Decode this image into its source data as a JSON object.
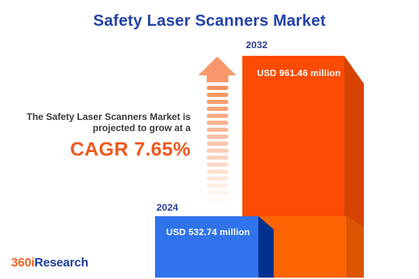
{
  "title": "Safety Laser Scanners Market",
  "annotation": {
    "line1": "The Safety Laser Scanners Market is",
    "line2": "projected to grow at a",
    "cagr": "CAGR 7.65%"
  },
  "bars": {
    "b2024": {
      "year": "2024",
      "value_label": "USD 532.74 million"
    },
    "b2032": {
      "year": "2032",
      "value_label": "USD 961.46 million"
    }
  },
  "logo": {
    "part1": "360i",
    "part2": "Research"
  },
  "colors": {
    "background": "#FFFFFF",
    "title_blue": "#2343A7",
    "label_blue": "#2B3F99",
    "text_dark": "#3B3B3A",
    "cagr_orange": "#F0591F",
    "bar_2032_front": "#FC4B03",
    "bar_2032_side": "#D64200",
    "overlap_box_front": "#FE6502",
    "overlap_box_side": "#DB5502",
    "bar_2024_front": "#3073EA",
    "bar_2024_side": "#03318D",
    "arrow_head": "#F8976B",
    "arrow_stripe": "#F68C55",
    "value_text": "#FFFFFF",
    "logo_orange": "#F26522",
    "logo_blue": "#21409A"
  },
  "chart_data": {
    "type": "bar",
    "title": "Safety Laser Scanners Market",
    "categories": [
      "2024",
      "2032"
    ],
    "values": [
      532.74,
      961.46
    ],
    "unit": "USD million",
    "value_labels": [
      "USD 532.74 million",
      "USD 961.46 million"
    ],
    "annotation": "The Safety Laser Scanners Market is projected to grow at a CAGR 7.65%",
    "cagr_percent": 7.65,
    "series_colors": [
      "#3073EA",
      "#FC4B03"
    ],
    "xlabel": "",
    "ylabel": "",
    "ylim": [
      0,
      1000
    ],
    "grid": false,
    "legend": false
  }
}
